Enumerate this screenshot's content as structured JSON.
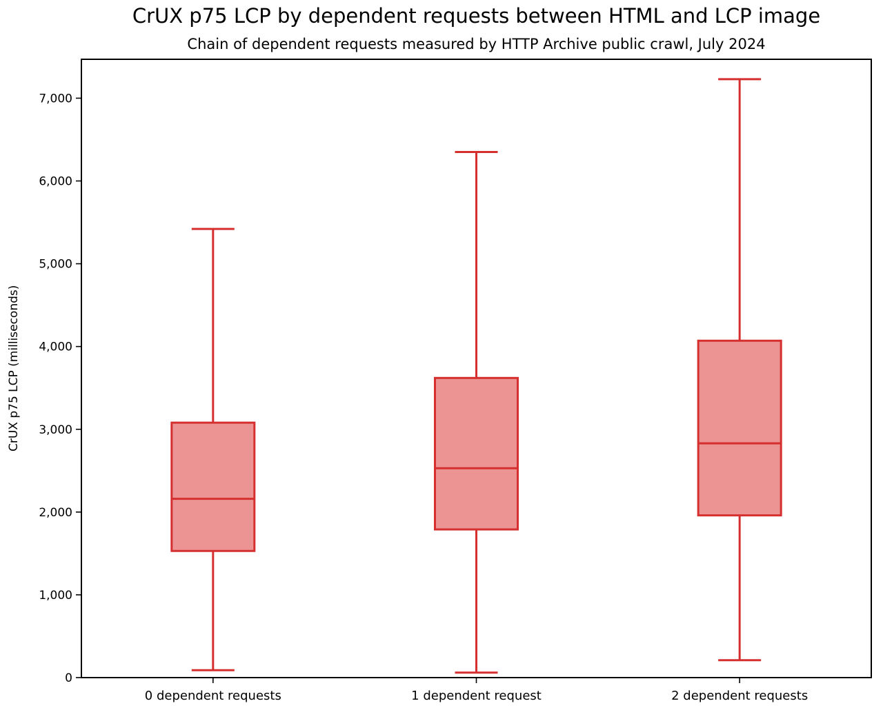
{
  "chart_data": {
    "type": "boxplot",
    "title": "CrUX p75 LCP by dependent requests between HTML and LCP image",
    "subtitle": "Chain of dependent requests measured by HTTP Archive public crawl, July 2024",
    "ylabel": "CrUX p75 LCP (milliseconds)",
    "xlabel": "",
    "categories": [
      "0 dependent requests",
      "1 dependent request",
      "2 dependent requests"
    ],
    "ylim": [
      0,
      7470
    ],
    "yticks": [
      0,
      1000,
      2000,
      3000,
      4000,
      5000,
      6000,
      7000
    ],
    "grid": false,
    "legend": "none",
    "series": [
      {
        "category": "0 dependent requests",
        "whisker_low": 90,
        "q1": 1530,
        "median": 2160,
        "q3": 3080,
        "whisker_high": 5420
      },
      {
        "category": "1 dependent request",
        "whisker_low": 60,
        "q1": 1790,
        "median": 2530,
        "q3": 3620,
        "whisker_high": 6350
      },
      {
        "category": "2 dependent requests",
        "whisker_low": 210,
        "q1": 1960,
        "median": 2830,
        "q3": 4070,
        "whisker_high": 7230
      }
    ],
    "colors": {
      "box_fill": "#ec9494",
      "box_stroke": "#d62f2f",
      "axis": "#000000"
    }
  }
}
